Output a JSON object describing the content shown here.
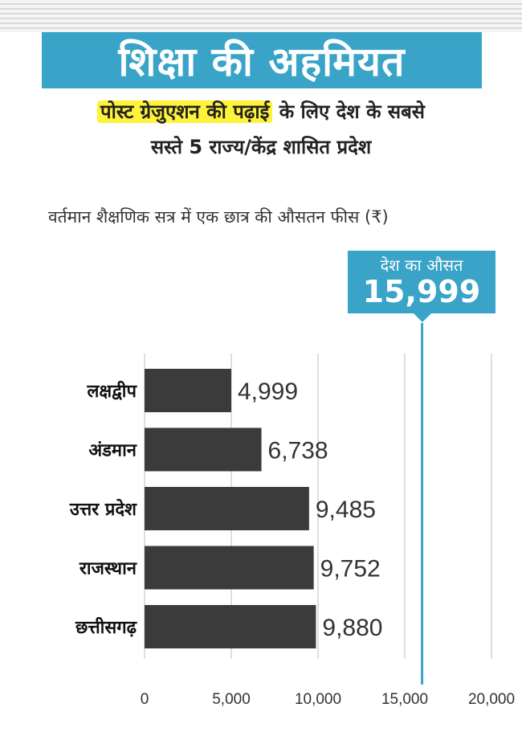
{
  "header": {
    "title": "शिक्षा की अहमियत",
    "subtitle_highlight": "पोस्ट ग्रेजुएशन की पढ़ाई",
    "subtitle_rest": " के लिए देश के सबसे",
    "subtitle_line2": "सस्ते 5 राज्य/केंद्र शासित प्रदेश",
    "caption": "वर्तमान शैक्षणिक सत्र में एक छात्र की औसतन फीस (₹)"
  },
  "average": {
    "label": "देश का औसत",
    "value_text": "15,999",
    "value": 15999
  },
  "colors": {
    "accent": "#3aa3c8",
    "bar": "#3b3b3b",
    "highlight": "#fff23a",
    "grid": "#bfbfbf"
  },
  "chart_data": {
    "type": "bar",
    "orientation": "horizontal",
    "categories": [
      "लक्षद्वीप",
      "अंडमान",
      "उत्तर प्रदेश",
      "राजस्थान",
      "छत्तीसगढ़"
    ],
    "values": [
      4999,
      6738,
      9485,
      9752,
      9880
    ],
    "value_labels": [
      "4,999",
      "6,738",
      "9,485",
      "9,752",
      "9,880"
    ],
    "xlim": [
      0,
      20000
    ],
    "ticks": [
      0,
      5000,
      10000,
      15000,
      20000
    ],
    "tick_labels": [
      "0",
      "5,000",
      "10,000",
      "15,000",
      "20,000"
    ],
    "reference_line": 15999,
    "grid": true
  }
}
